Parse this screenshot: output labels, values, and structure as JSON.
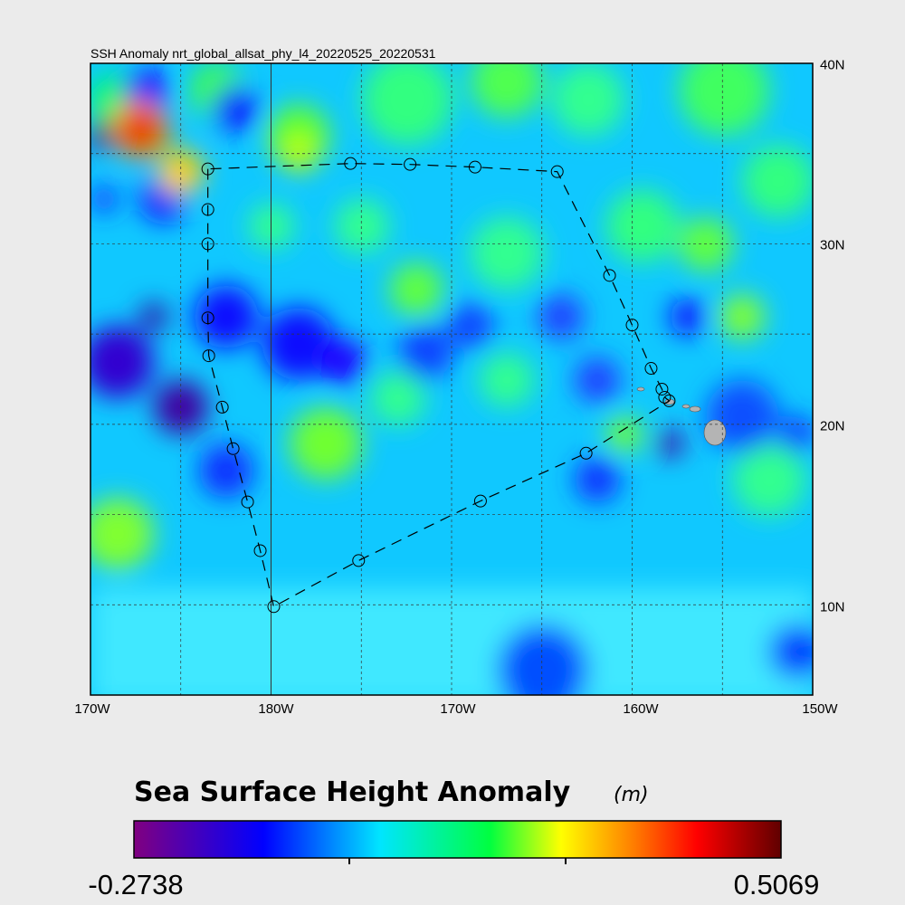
{
  "title": "SSH Anomaly nrt_global_allsat_phy_l4_20220525_20220531",
  "chart_data": {
    "type": "heatmap",
    "title": "SSH Anomaly nrt_global_allsat_phy_l4_20220525_20220531",
    "x_tick_labels": [
      "170W",
      "180W",
      "170W",
      "160W",
      "150W"
    ],
    "y_tick_labels": [
      "40N",
      "30N",
      "20N",
      "10N"
    ],
    "lon_range": [
      -190,
      -150
    ],
    "lat_range": [
      5,
      40
    ],
    "grid": true,
    "colorbar": {
      "title": "Sea Surface Height Anomaly",
      "unit": "(m)",
      "min_label": "-0.2738",
      "max_label": "0.5069",
      "min": -0.2738,
      "max": 0.5069,
      "colors": [
        "#800080",
        "#0000ff",
        "#00e5ff",
        "#00ff40",
        "#ffff00",
        "#ff8000",
        "#ff0000",
        "#600000"
      ]
    },
    "track": [
      [
        -183.5,
        34.15
      ],
      [
        -183.5,
        31.9
      ],
      [
        -183.5,
        30.0
      ],
      [
        -183.5,
        25.9
      ],
      [
        -183.45,
        23.8
      ],
      [
        -182.7,
        20.95
      ],
      [
        -182.1,
        18.65
      ],
      [
        -181.3,
        15.7
      ],
      [
        -180.6,
        13.0
      ],
      [
        -179.85,
        9.9
      ],
      [
        -175.15,
        12.45
      ],
      [
        -168.4,
        15.75
      ],
      [
        -162.55,
        18.4
      ],
      [
        -157.95,
        21.3
      ],
      [
        -158.2,
        21.5
      ],
      [
        -158.35,
        21.95
      ],
      [
        -158.95,
        23.1
      ],
      [
        -160.0,
        25.5
      ],
      [
        -161.25,
        28.25
      ],
      [
        -164.15,
        34.0
      ],
      [
        -168.7,
        34.25
      ],
      [
        -172.3,
        34.4
      ],
      [
        -175.6,
        34.45
      ],
      [
        -183.5,
        34.15
      ]
    ],
    "land_color": "#b4b4b4"
  }
}
